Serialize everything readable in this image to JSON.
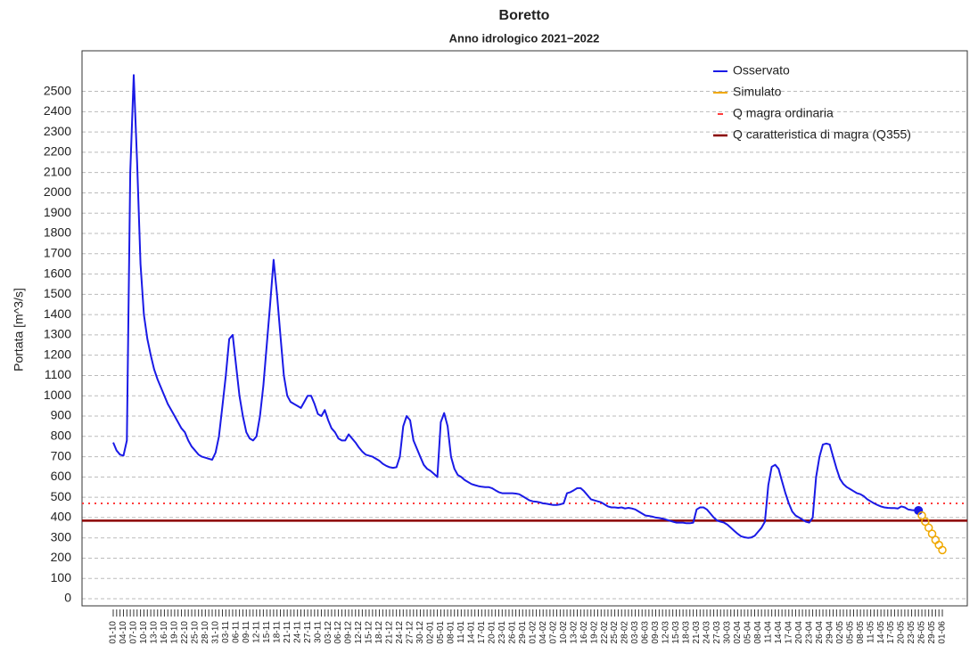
{
  "chart_data": {
    "type": "line",
    "title": "Boretto",
    "subtitle": "Anno idrologico 2021−2022",
    "y_label": "Portata [m^3/s]",
    "ylim": [
      -35,
      2700
    ],
    "yticks": [
      0,
      100,
      200,
      300,
      400,
      500,
      600,
      700,
      800,
      900,
      1000,
      1100,
      1200,
      1300,
      1400,
      1500,
      1600,
      1700,
      1800,
      1900,
      2000,
      2100,
      2200,
      2300,
      2400,
      2500
    ],
    "grid": true,
    "legend": "top-right",
    "categories": [
      "01-10",
      null,
      null,
      "04-10",
      null,
      null,
      "07-10",
      null,
      null,
      "10-10",
      null,
      null,
      "13-10",
      null,
      null,
      "16-10",
      null,
      null,
      "19-10",
      null,
      null,
      "22-10",
      null,
      null,
      "25-10",
      null,
      null,
      "28-10",
      null,
      null,
      "31-10",
      null,
      null,
      "03-11",
      null,
      null,
      "06-11",
      null,
      null,
      "09-11",
      null,
      null,
      "12-11",
      null,
      null,
      "15-11",
      null,
      null,
      "18-11",
      null,
      null,
      "21-11",
      null,
      null,
      "24-11",
      null,
      null,
      "27-11",
      null,
      null,
      "30-11",
      null,
      null,
      "03-12",
      null,
      null,
      "06-12",
      null,
      null,
      "09-12",
      null,
      null,
      "12-12",
      null,
      null,
      "15-12",
      null,
      null,
      "18-12",
      null,
      null,
      "21-12",
      null,
      null,
      "24-12",
      null,
      null,
      "27-12",
      null,
      null,
      "30-12",
      null,
      null,
      "02-01",
      null,
      null,
      "05-01",
      null,
      null,
      "08-01",
      null,
      null,
      "11-01",
      null,
      null,
      "14-01",
      null,
      null,
      "17-01",
      null,
      null,
      "20-01",
      null,
      null,
      "23-01",
      null,
      null,
      "26-01",
      null,
      null,
      "29-01",
      null,
      null,
      "01-02",
      null,
      null,
      "04-02",
      null,
      null,
      "07-02",
      null,
      null,
      "10-02",
      null,
      null,
      "13-02",
      null,
      null,
      "16-02",
      null,
      null,
      "19-02",
      null,
      null,
      "22-02",
      null,
      null,
      "25-02",
      null,
      null,
      "28-02",
      null,
      null,
      "03-03",
      null,
      null,
      "06-03",
      null,
      null,
      "09-03",
      null,
      null,
      "12-03",
      null,
      null,
      "15-03",
      null,
      null,
      "18-03",
      null,
      null,
      "21-03",
      null,
      null,
      "24-03",
      null,
      null,
      "27-03",
      null,
      null,
      "30-03",
      null,
      null,
      "02-04",
      null,
      null,
      "05-04",
      null,
      null,
      "08-04",
      null,
      null,
      "11-04",
      null,
      null,
      "14-04",
      null,
      null,
      "17-04",
      null,
      null,
      "20-04",
      null,
      null,
      "23-04",
      null,
      null,
      "26-04",
      null,
      null,
      "29-04",
      null,
      null,
      "02-05",
      null,
      null,
      "05-05",
      null,
      null,
      "08-05",
      null,
      null,
      "11-05",
      null,
      null,
      "14-05",
      null,
      null,
      "17-05",
      null,
      null,
      "20-05",
      null,
      null,
      "23-05",
      null,
      null,
      "26-05",
      null,
      null,
      "29-05",
      null,
      null,
      "01-06"
    ],
    "series": [
      {
        "name": "Osservato",
        "color": "#1a1ae6",
        "line": true,
        "last_marker": true,
        "values": [
          770,
          730,
          710,
          705,
          780,
          2100,
          2580,
          2150,
          1650,
          1400,
          1280,
          1200,
          1130,
          1080,
          1040,
          1000,
          960,
          930,
          900,
          870,
          840,
          820,
          780,
          750,
          730,
          710,
          700,
          695,
          690,
          685,
          720,
          800,
          950,
          1100,
          1280,
          1300,
          1150,
          1000,
          900,
          820,
          790,
          780,
          800,
          900,
          1050,
          1250,
          1450,
          1670,
          1500,
          1300,
          1100,
          1000,
          970,
          960,
          950,
          940,
          970,
          1000,
          1000,
          960,
          910,
          900,
          930,
          880,
          840,
          820,
          790,
          780,
          780,
          810,
          790,
          770,
          745,
          725,
          710,
          705,
          700,
          690,
          680,
          665,
          655,
          648,
          645,
          648,
          700,
          850,
          900,
          880,
          780,
          740,
          700,
          660,
          640,
          630,
          615,
          600,
          870,
          915,
          850,
          700,
          640,
          610,
          600,
          585,
          575,
          565,
          560,
          555,
          552,
          550,
          550,
          545,
          535,
          525,
          520,
          520,
          520,
          520,
          518,
          515,
          505,
          495,
          485,
          480,
          478,
          475,
          470,
          468,
          465,
          462,
          462,
          465,
          470,
          520,
          525,
          535,
          545,
          545,
          530,
          510,
          490,
          485,
          480,
          475,
          465,
          455,
          450,
          450,
          448,
          450,
          445,
          448,
          445,
          440,
          430,
          420,
          410,
          408,
          405,
          400,
          398,
          395,
          390,
          385,
          380,
          375,
          375,
          375,
          372,
          372,
          375,
          440,
          450,
          450,
          440,
          420,
          400,
          385,
          380,
          375,
          365,
          350,
          335,
          320,
          308,
          303,
          300,
          302,
          310,
          330,
          350,
          380,
          560,
          650,
          660,
          640,
          580,
          520,
          470,
          430,
          410,
          400,
          390,
          380,
          375,
          400,
          600,
          700,
          760,
          765,
          760,
          700,
          640,
          590,
          565,
          550,
          540,
          530,
          520,
          515,
          505,
          490,
          480,
          470,
          462,
          455,
          450,
          448,
          447,
          447,
          445,
          455,
          450,
          440,
          437,
          435,
          435,
          null,
          null,
          null,
          null,
          null,
          null,
          null
        ]
      },
      {
        "name": "Simulato",
        "color": "#f0a800",
        "line": false,
        "marker": "open-circle",
        "values": [
          null,
          null,
          null,
          null,
          null,
          null,
          null,
          null,
          null,
          null,
          null,
          null,
          null,
          null,
          null,
          null,
          null,
          null,
          null,
          null,
          null,
          null,
          null,
          null,
          null,
          null,
          null,
          null,
          null,
          null,
          null,
          null,
          null,
          null,
          null,
          null,
          null,
          null,
          null,
          null,
          null,
          null,
          null,
          null,
          null,
          null,
          null,
          null,
          null,
          null,
          null,
          null,
          null,
          null,
          null,
          null,
          null,
          null,
          null,
          null,
          null,
          null,
          null,
          null,
          null,
          null,
          null,
          null,
          null,
          null,
          null,
          null,
          null,
          null,
          null,
          null,
          null,
          null,
          null,
          null,
          null,
          null,
          null,
          null,
          null,
          null,
          null,
          null,
          null,
          null,
          null,
          null,
          null,
          null,
          null,
          null,
          null,
          null,
          null,
          null,
          null,
          null,
          null,
          null,
          null,
          null,
          null,
          null,
          null,
          null,
          null,
          null,
          null,
          null,
          null,
          null,
          null,
          null,
          null,
          null,
          null,
          null,
          null,
          null,
          null,
          null,
          null,
          null,
          null,
          null,
          null,
          null,
          null,
          null,
          null,
          null,
          null,
          null,
          null,
          null,
          null,
          null,
          null,
          null,
          null,
          null,
          null,
          null,
          null,
          null,
          null,
          null,
          null,
          null,
          null,
          null,
          null,
          null,
          null,
          null,
          null,
          null,
          null,
          null,
          null,
          null,
          null,
          null,
          null,
          null,
          null,
          null,
          null,
          null,
          null,
          null,
          null,
          null,
          null,
          null,
          null,
          null,
          null,
          null,
          null,
          null,
          null,
          null,
          null,
          null,
          null,
          null,
          null,
          null,
          null,
          null,
          null,
          null,
          null,
          null,
          null,
          null,
          null,
          null,
          null,
          null,
          null,
          null,
          null,
          null,
          null,
          null,
          null,
          null,
          null,
          null,
          null,
          null,
          null,
          null,
          null,
          null,
          null,
          null,
          null,
          null,
          null,
          null,
          null,
          null,
          null,
          null,
          null,
          null,
          null,
          null,
          null,
          410,
          380,
          350,
          320,
          290,
          265,
          240
        ]
      }
    ],
    "hlines": [
      {
        "name": "Q magra ordinaria",
        "color": "#ff3b3b",
        "style": "dotted",
        "value": 470
      },
      {
        "name": "Q caratteristica di magra (Q355)",
        "color": "#8b0000",
        "style": "solid",
        "value": 385
      }
    ]
  }
}
